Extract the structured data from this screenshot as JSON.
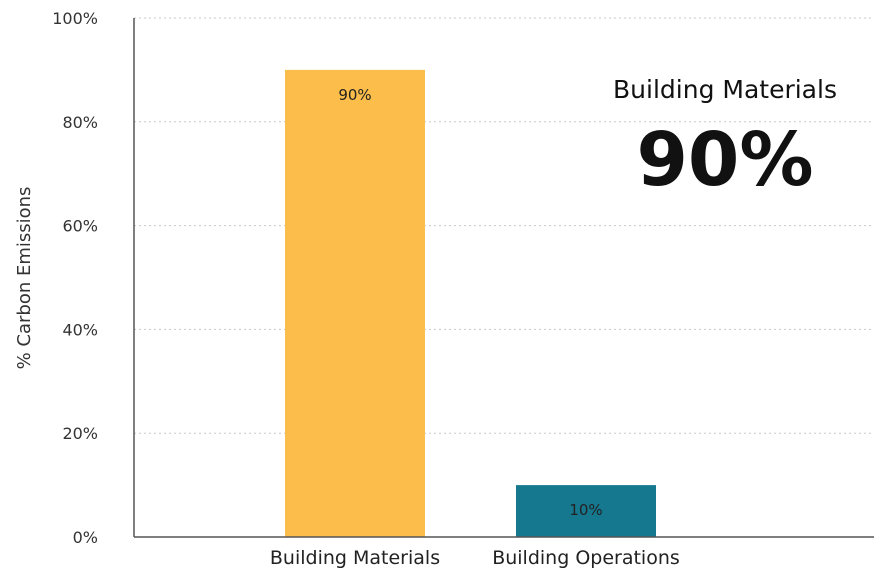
{
  "chart_data": {
    "type": "bar",
    "categories": [
      "Building Materials",
      "Building Operations"
    ],
    "values": [
      90,
      10
    ],
    "value_labels": [
      "90%",
      "10%"
    ],
    "bar_colors": [
      "#fcbd4a",
      "#15788f"
    ],
    "ylabel": "% Carbon Emissions",
    "xlabel": "",
    "ylim": [
      0,
      100
    ],
    "y_ticks": [
      0,
      20,
      40,
      60,
      80,
      100
    ],
    "y_tick_labels": [
      "0%",
      "20%",
      "40%",
      "60%",
      "80%",
      "100%"
    ],
    "grid": true,
    "grid_style": "dashed",
    "annotation": {
      "label": "Building Materials",
      "value": "90%"
    }
  }
}
